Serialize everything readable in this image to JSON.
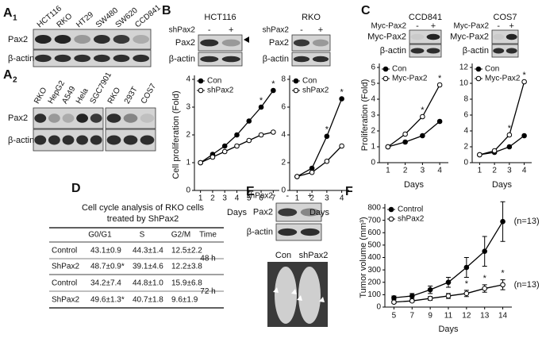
{
  "panel_a": {
    "label": "A",
    "blot1": {
      "sub": "1",
      "lanes": [
        "HCT116",
        "RKO",
        "HT29",
        "SW480",
        "SW620",
        "CCD841"
      ],
      "rows": [
        "Pax2",
        "β-actin"
      ]
    },
    "blot2": {
      "sub": "2",
      "lanes": [
        "RKO",
        "HepG2",
        "A549",
        "Hela",
        "SGC7901",
        "RKO",
        "293T",
        "COS7"
      ],
      "rows": [
        "Pax2",
        "β-actin"
      ]
    }
  },
  "panel_b": {
    "label": "B",
    "blots": [
      {
        "title": "HCT116",
        "treatment": "shPax2",
        "signs": [
          "-",
          "+"
        ],
        "rows": [
          "Pax2",
          "β-actin"
        ]
      },
      {
        "title": "RKO",
        "treatment": "shPax2",
        "signs": [
          "-",
          "+"
        ],
        "rows": [
          "Pax2",
          "β-actin"
        ]
      }
    ]
  },
  "panel_c": {
    "label": "C",
    "blots": [
      {
        "title": "CCD841",
        "treatment": "Myc-Pax2",
        "signs": [
          "-",
          "+"
        ],
        "rows": [
          "Myc-Pax2",
          "β-actin"
        ]
      },
      {
        "title": "COS7",
        "treatment": "Myc-Pax2",
        "signs": [
          "-",
          "+"
        ],
        "rows": [
          "Myc-Pax2",
          "β-actin"
        ]
      }
    ]
  },
  "panel_d": {
    "label": "D",
    "table": {
      "title": [
        "Cell cycle analysis of RKO cells",
        "treated by ShPax2"
      ],
      "header": [
        "G0/G1",
        "S",
        "G2/M",
        "Time"
      ],
      "rows": [
        [
          "Control",
          "43.1±0.9",
          "44.3±1.4",
          "12.5±2.2"
        ],
        [
          "ShPax2",
          "48.7±0.9*",
          "39.1±4.6",
          "12.2±3.8"
        ],
        [
          "Control",
          "34.2±7.4",
          "44.8±1.0",
          "15.9±6.8"
        ],
        [
          "ShPax2",
          "49.6±1.3*",
          "40.7±1.8",
          "9.6±1.9"
        ]
      ],
      "times": [
        "48 h",
        "72 h"
      ]
    }
  },
  "panel_e": {
    "label": "E",
    "blot": {
      "treatment": "shPax2",
      "signs": [
        "-",
        "+"
      ],
      "rows": [
        "Pax2",
        "β-actin"
      ]
    },
    "photo_labels": [
      "Con",
      "shPax2"
    ]
  },
  "panel_f": {
    "label": "F"
  },
  "chart_data": [
    {
      "type": "line",
      "xlabel": "Days",
      "ylabel": "Cell proliferation (Fold)",
      "x": [
        1,
        2,
        3,
        4,
        5,
        6,
        7
      ],
      "xlim": [
        0.5,
        7.5
      ],
      "xticks": [
        1,
        2,
        3,
        4,
        5,
        6,
        7
      ],
      "ylim": [
        0,
        4
      ],
      "yticks": [
        0,
        1,
        2,
        3,
        4
      ],
      "legend": "upper left",
      "series": [
        {
          "name": "Con",
          "color": "#000000",
          "marker": "filled",
          "values": [
            1,
            1.3,
            1.6,
            2.0,
            2.5,
            3.0,
            3.6
          ]
        },
        {
          "name": "shPax2",
          "color": "#000000",
          "marker": "open",
          "values": [
            1,
            1.2,
            1.4,
            1.6,
            1.8,
            2.0,
            2.1
          ]
        }
      ],
      "annotations": [
        {
          "text": "*",
          "x": 6
        },
        {
          "text": "*",
          "x": 7
        }
      ]
    },
    {
      "type": "line",
      "xlabel": "Days",
      "x": [
        1,
        2,
        3,
        4
      ],
      "xlim": [
        0.5,
        4.5
      ],
      "xticks": [
        1,
        2,
        3,
        4
      ],
      "ylim": [
        0,
        8
      ],
      "yticks": [
        0,
        2,
        4,
        6,
        8
      ],
      "legend": "upper left",
      "series": [
        {
          "name": "Con",
          "color": "#000000",
          "marker": "filled",
          "values": [
            1,
            1.6,
            3.9,
            6.6
          ]
        },
        {
          "name": "shPax2",
          "color": "#000000",
          "marker": "open",
          "values": [
            1,
            1.3,
            2.1,
            3.2
          ]
        }
      ],
      "annotations": [
        {
          "text": "*",
          "x": 3
        },
        {
          "text": "*",
          "x": 4
        }
      ]
    },
    {
      "type": "line",
      "xlabel": "Days",
      "ylabel": "Proliferation (Fold)",
      "x": [
        1,
        2,
        3,
        4
      ],
      "xlim": [
        0.5,
        4.5
      ],
      "xticks": [
        1,
        2,
        3,
        4
      ],
      "ylim": [
        0,
        6
      ],
      "yticks": [
        0,
        1,
        2,
        3,
        4,
        5,
        6
      ],
      "legend": "upper left",
      "series": [
        {
          "name": "Con",
          "color": "#000000",
          "marker": "filled",
          "values": [
            1,
            1.3,
            1.7,
            2.6
          ]
        },
        {
          "name": "Myc-Pax2",
          "color": "#000000",
          "marker": "open",
          "values": [
            1,
            1.8,
            2.9,
            4.9
          ]
        }
      ],
      "annotations": [
        {
          "text": "*",
          "x": 3
        },
        {
          "text": "*",
          "x": 4
        }
      ]
    },
    {
      "type": "line",
      "xlabel": "Days",
      "x": [
        1,
        2,
        3,
        4
      ],
      "xlim": [
        0.5,
        4.5
      ],
      "xticks": [
        1,
        2,
        3,
        4
      ],
      "ylim": [
        0,
        12
      ],
      "yticks": [
        0,
        2,
        4,
        6,
        8,
        10,
        12
      ],
      "legend": "upper left",
      "series": [
        {
          "name": "Con",
          "color": "#000000",
          "marker": "filled",
          "values": [
            1,
            1.3,
            2,
            3.4
          ]
        },
        {
          "name": "Myc-Pax2",
          "color": "#000000",
          "marker": "open",
          "values": [
            1,
            1.5,
            3.5,
            10.2
          ]
        }
      ],
      "annotations": [
        {
          "text": "*",
          "x": 3
        },
        {
          "text": "*",
          "x": 4
        }
      ]
    },
    {
      "type": "line",
      "xlabel": "Days",
      "ylabel": "Tumor volume (mm³)",
      "categories": [
        "5",
        "7",
        "9",
        "11",
        "12",
        "13",
        "14"
      ],
      "ylim": [
        0,
        800
      ],
      "yticks": [
        0,
        100,
        200,
        300,
        400,
        500,
        600,
        700,
        800
      ],
      "legend": "upper left",
      "series": [
        {
          "name": "Control",
          "color": "#000000",
          "marker": "filled",
          "end_label": "(n=13)",
          "values": [
            75,
            90,
            140,
            200,
            320,
            450,
            690
          ],
          "errors": [
            15,
            20,
            30,
            40,
            80,
            120,
            160
          ]
        },
        {
          "name": "shPax2",
          "color": "#000000",
          "marker": "open",
          "end_label": "(n=13)",
          "values": [
            40,
            50,
            70,
            90,
            110,
            150,
            180
          ],
          "errors": [
            10,
            10,
            15,
            20,
            25,
            30,
            40
          ]
        }
      ],
      "annotations": [
        {
          "text": "*",
          "x": "12"
        },
        {
          "text": "*",
          "x": "13"
        },
        {
          "text": "*",
          "x": "14"
        }
      ]
    }
  ]
}
